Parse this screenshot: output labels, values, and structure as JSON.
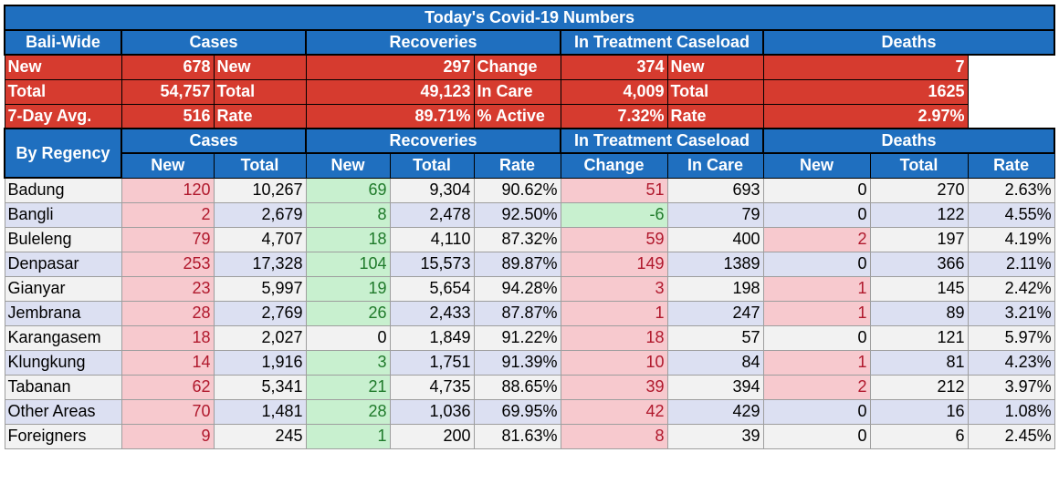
{
  "title": "Today's Covid-19 Numbers",
  "sections": {
    "cases": "Cases",
    "recoveries": "Recoveries",
    "treatment": "In Treatment Caseload",
    "deaths": "Deaths"
  },
  "bali_wide": {
    "label": "Bali-Wide",
    "rows": [
      {
        "c_label": "New",
        "c_val": "678",
        "r_label": "New",
        "r_val": "297",
        "t_label": "Change",
        "t_val": "374",
        "d_label": "New",
        "d_val": "7"
      },
      {
        "c_label": "Total",
        "c_val": "54,757",
        "r_label": "Total",
        "r_val": "49,123",
        "t_label": "In Care",
        "t_val": "4,009",
        "d_label": "Total",
        "d_val": "1625"
      },
      {
        "c_label": "7-Day Avg.",
        "c_val": "516",
        "r_label": "Rate",
        "r_val": "89.71%",
        "t_label": "% Active",
        "t_val": "7.32%",
        "d_label": "Rate",
        "d_val": "2.97%"
      }
    ]
  },
  "by_regency": {
    "label": "By Regency",
    "columns": [
      "New",
      "Total",
      "New",
      "Total",
      "Rate",
      "Change",
      "In Care",
      "New",
      "Total",
      "Rate"
    ],
    "rows": [
      [
        "Badung",
        "120",
        "10,267",
        "69",
        "9,304",
        "90.62%",
        "51",
        "693",
        "0",
        "270",
        "2.63%"
      ],
      [
        "Bangli",
        "2",
        "2,679",
        "8",
        "2,478",
        "92.50%",
        "-6",
        "79",
        "0",
        "122",
        "4.55%"
      ],
      [
        "Buleleng",
        "79",
        "4,707",
        "18",
        "4,110",
        "87.32%",
        "59",
        "400",
        "2",
        "197",
        "4.19%"
      ],
      [
        "Denpasar",
        "253",
        "17,328",
        "104",
        "15,573",
        "89.87%",
        "149",
        "1389",
        "0",
        "366",
        "2.11%"
      ],
      [
        "Gianyar",
        "23",
        "5,997",
        "19",
        "5,654",
        "94.28%",
        "3",
        "198",
        "1",
        "145",
        "2.42%"
      ],
      [
        "Jembrana",
        "28",
        "2,769",
        "26",
        "2,433",
        "87.87%",
        "1",
        "247",
        "1",
        "89",
        "3.21%"
      ],
      [
        "Karangasem",
        "18",
        "2,027",
        "0",
        "1,849",
        "91.22%",
        "18",
        "57",
        "0",
        "121",
        "5.97%"
      ],
      [
        "Klungkung",
        "14",
        "1,916",
        "3",
        "1,751",
        "91.39%",
        "10",
        "84",
        "1",
        "81",
        "4.23%"
      ],
      [
        "Tabanan",
        "62",
        "5,341",
        "21",
        "4,735",
        "88.65%",
        "39",
        "394",
        "2",
        "212",
        "3.97%"
      ],
      [
        "Other Areas",
        "70",
        "1,481",
        "28",
        "1,036",
        "69.95%",
        "42",
        "429",
        "0",
        "16",
        "1.08%"
      ],
      [
        "Foreigners",
        "9",
        "245",
        "1",
        "200",
        "81.63%",
        "8",
        "39",
        "0",
        "6",
        "2.45%"
      ]
    ]
  },
  "colors": {
    "header_blue": "#1f6fbf",
    "summary_red": "#d63b2f",
    "highlight_pink": "#f7c9ce",
    "highlight_green": "#c8f0cf",
    "row_grey": "#f2f2f2",
    "row_lavender": "#dce0f2"
  }
}
